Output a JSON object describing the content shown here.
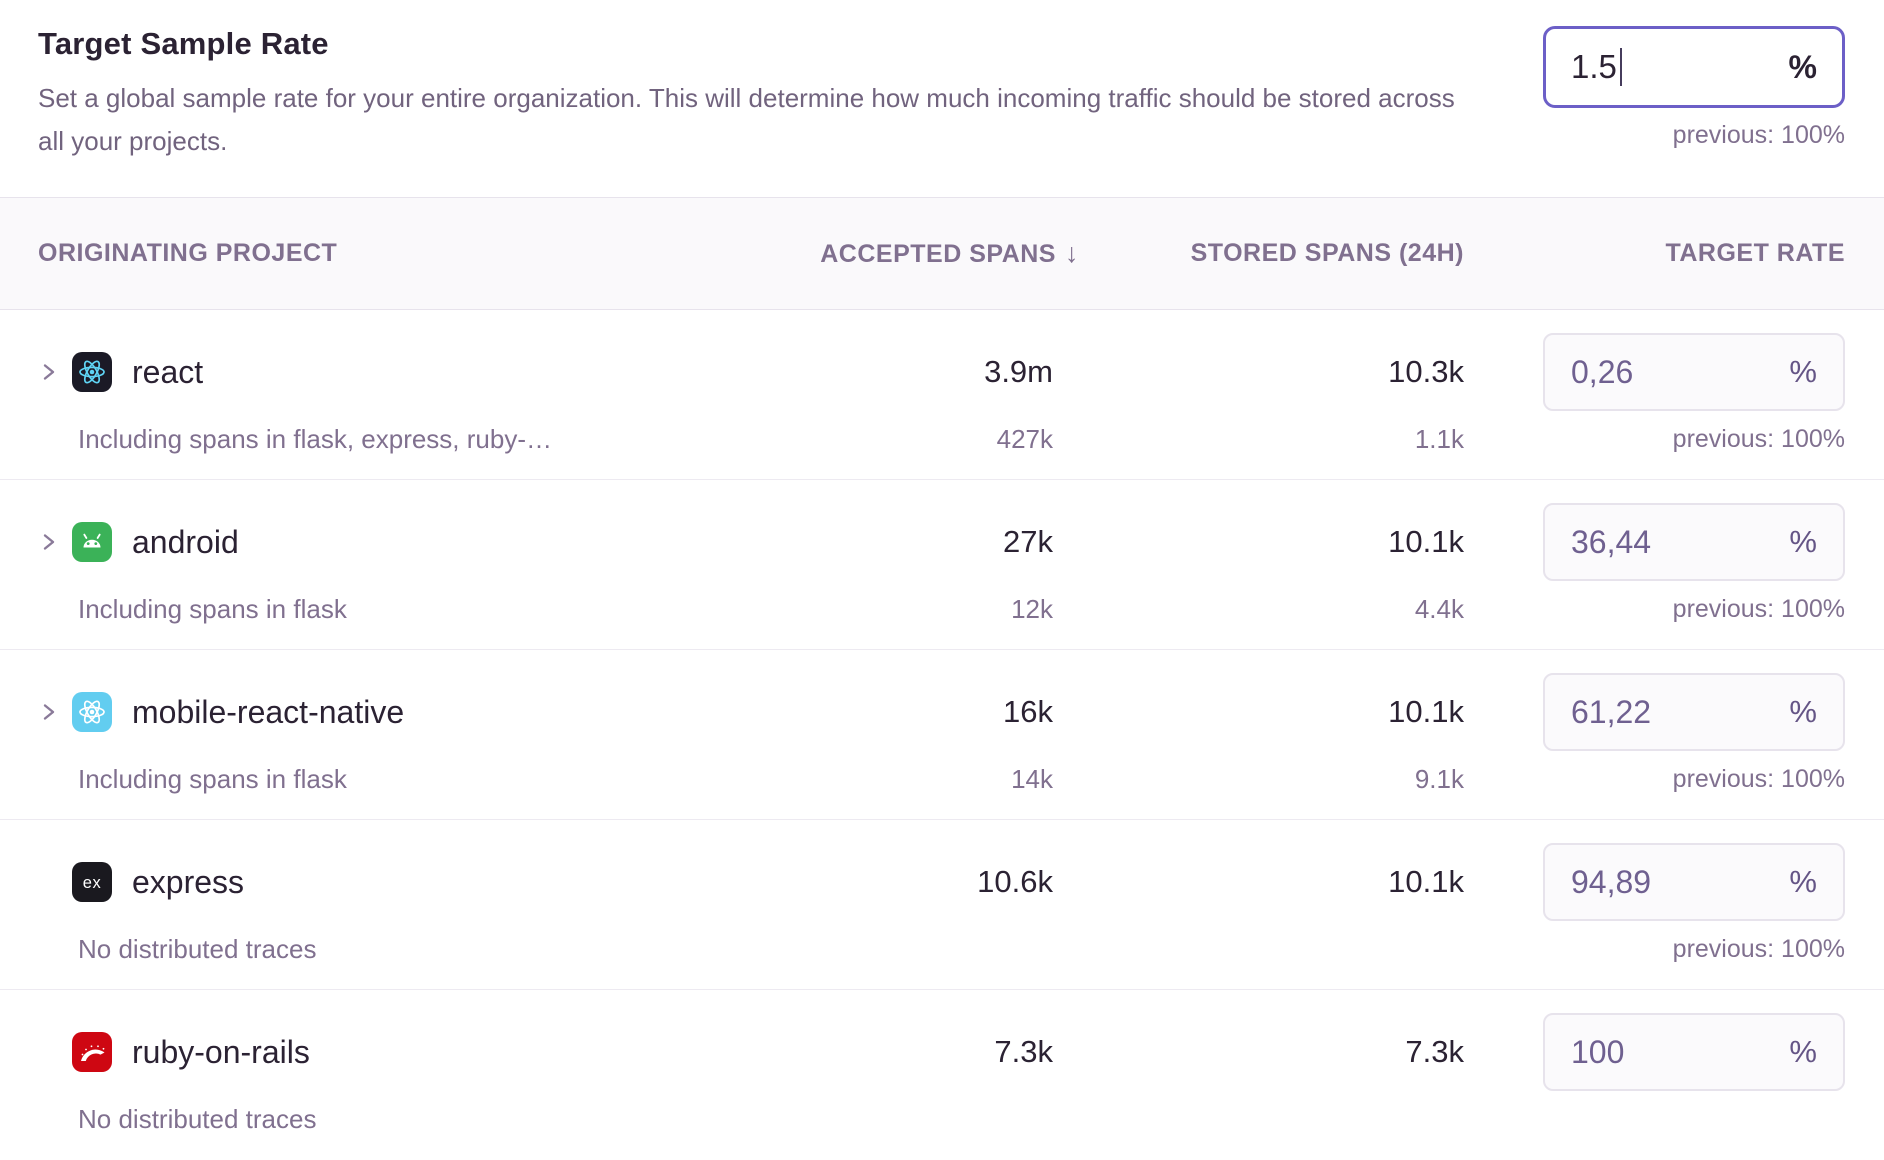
{
  "header": {
    "title": "Target Sample Rate",
    "description": "Set a global sample rate for your entire organization. This will determine how much incoming traffic should be stored across all your projects.",
    "rate_input": {
      "value": "1.5",
      "suffix": "%"
    },
    "previous": "previous: 100%"
  },
  "table": {
    "columns": {
      "project": "ORIGINATING PROJECT",
      "accepted": "ACCEPTED SPANS",
      "stored": "STORED SPANS (24H)",
      "target": "TARGET RATE"
    },
    "sort_icon": "↓",
    "rows": [
      {
        "project": "react",
        "icon": "react-icon",
        "expandable": true,
        "note": "Including spans in flask, express, ruby-…",
        "accepted": "3.9m",
        "accepted_sub": "427k",
        "stored": "10.3k",
        "stored_sub": "1.1k",
        "rate": "0,26",
        "rate_suffix": "%",
        "previous": "previous: 100%"
      },
      {
        "project": "android",
        "icon": "android-icon",
        "expandable": true,
        "note": "Including spans in flask",
        "accepted": "27k",
        "accepted_sub": "12k",
        "stored": "10.1k",
        "stored_sub": "4.4k",
        "rate": "36,44",
        "rate_suffix": "%",
        "previous": "previous: 100%"
      },
      {
        "project": "mobile-react-native",
        "icon": "react-native-icon",
        "expandable": true,
        "note": "Including spans in flask",
        "accepted": "16k",
        "accepted_sub": "14k",
        "stored": "10.1k",
        "stored_sub": "9.1k",
        "rate": "61,22",
        "rate_suffix": "%",
        "previous": "previous: 100%"
      },
      {
        "project": "express",
        "icon": "express-icon",
        "expandable": false,
        "note": "No distributed traces",
        "accepted": "10.6k",
        "accepted_sub": "",
        "stored": "10.1k",
        "stored_sub": "",
        "rate": "94,89",
        "rate_suffix": "%",
        "previous": "previous: 100%"
      },
      {
        "project": "ruby-on-rails",
        "icon": "ruby-on-rails-icon",
        "expandable": false,
        "note": "No distributed traces",
        "accepted": "7.3k",
        "accepted_sub": "",
        "stored": "7.3k",
        "stored_sub": "",
        "rate": "100",
        "rate_suffix": "%",
        "previous": null
      }
    ]
  },
  "colors": {
    "accent_focus_border": "#6C5FC7",
    "heading_text": "#2B2233",
    "muted_text": "#80708F",
    "description_text": "#71637E",
    "header_band_bg": "#FAF9FB",
    "divider": "#EDEAF1",
    "row_input_bg": "#FBFAFC",
    "row_input_border": "#E7E3EC",
    "row_input_text": "#6F6090",
    "react_icon_bg": "#1B1A26",
    "react_icon_atom": "#5FD4F4",
    "android_icon_bg": "#3BB258",
    "react_native_icon_bg": "#62CDF0",
    "express_icon_bg": "#1A191F",
    "rails_icon_bg": "#CE0712"
  }
}
